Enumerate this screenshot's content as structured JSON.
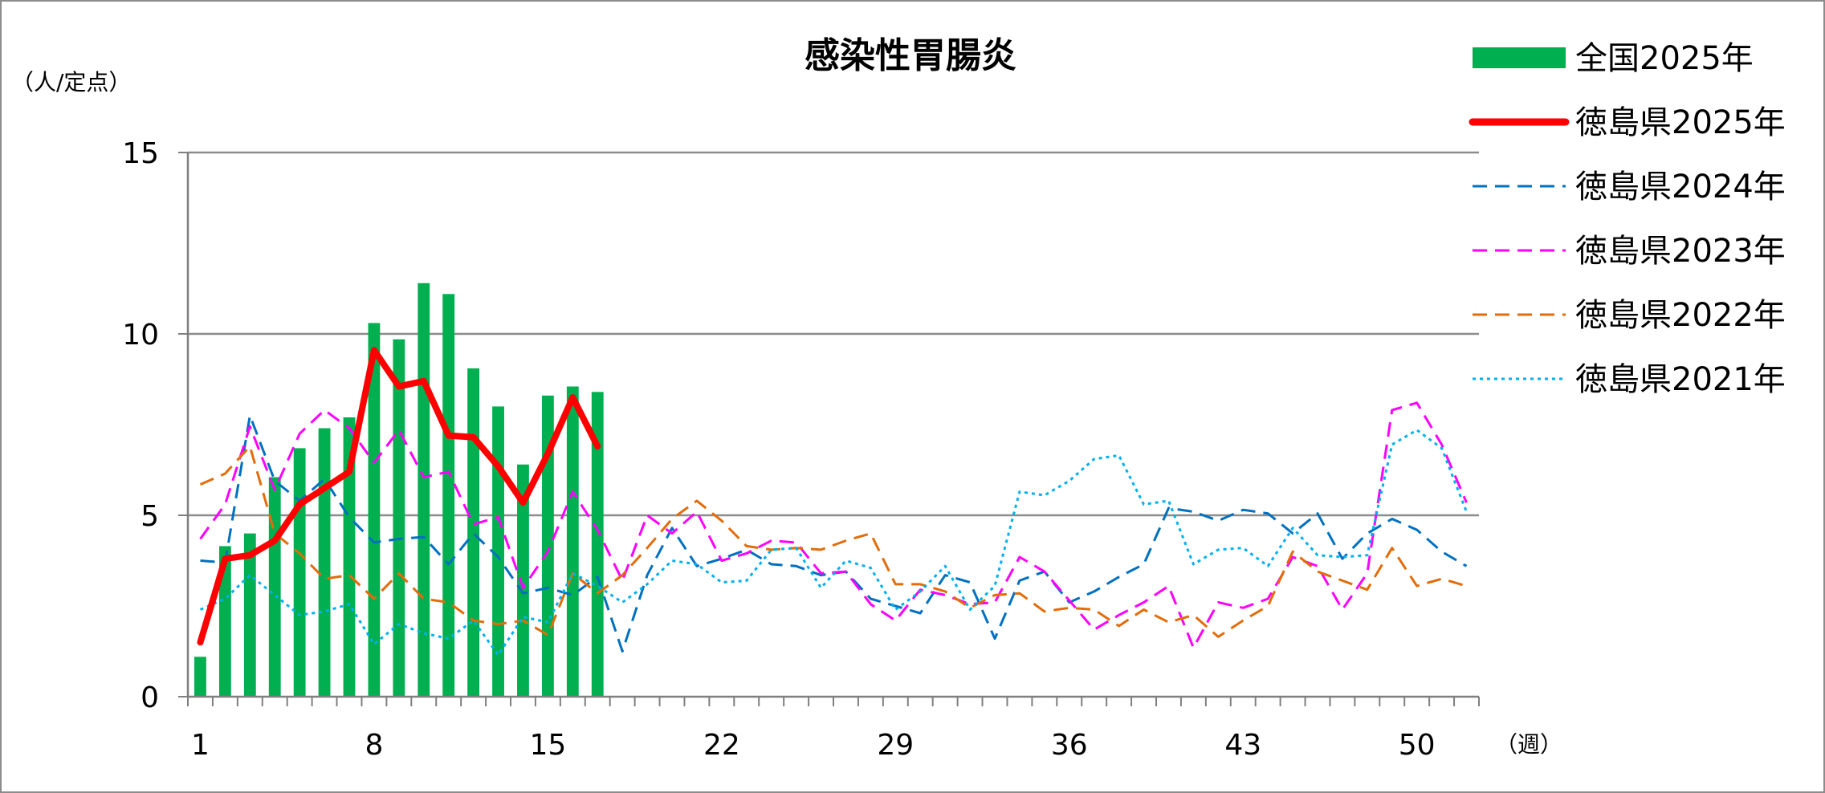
{
  "chart_data": {
    "type": "bar+line",
    "title": "感染性胃腸炎",
    "ylabel": "（人/定点）",
    "xlabel": "（週）",
    "ylim": [
      0,
      15
    ],
    "yticks": [
      0,
      5,
      10,
      15
    ],
    "xlim": [
      1,
      52
    ],
    "xtick_labels": [
      "1",
      "8",
      "15",
      "22",
      "29",
      "36",
      "43",
      "50"
    ],
    "xtick_values": [
      1,
      8,
      15,
      22,
      29,
      36,
      43,
      50
    ],
    "grid": "horizontal",
    "legend_position": "right",
    "series": [
      {
        "name": "全国2025年",
        "kind": "bar",
        "color": "#00b050",
        "x": [
          1,
          2,
          3,
          4,
          5,
          6,
          7,
          8,
          9,
          10,
          11,
          12,
          13,
          14,
          15,
          16,
          17
        ],
        "values": [
          1.1,
          4.15,
          4.5,
          6.05,
          6.85,
          7.4,
          7.7,
          10.3,
          9.85,
          11.4,
          11.1,
          9.05,
          8.0,
          6.4,
          8.3,
          8.55,
          8.4
        ]
      },
      {
        "name": "徳島県2025年",
        "kind": "line",
        "style": "solid",
        "color": "#ff0000",
        "x": [
          1,
          2,
          3,
          4,
          5,
          6,
          7,
          8,
          9,
          10,
          11,
          12,
          13,
          14,
          15,
          16,
          17
        ],
        "values": [
          1.5,
          3.8,
          3.9,
          4.3,
          5.3,
          5.75,
          6.2,
          9.55,
          8.55,
          8.7,
          7.2,
          7.15,
          6.35,
          5.35,
          6.7,
          8.25,
          6.9
        ]
      },
      {
        "name": "徳島県2024年",
        "kind": "line",
        "style": "dashed",
        "color": "#0070c0",
        "x": [
          1,
          2,
          3,
          4,
          5,
          6,
          7,
          8,
          9,
          10,
          11,
          12,
          13,
          14,
          15,
          16,
          17,
          18,
          19,
          20,
          21,
          22,
          23,
          24,
          25,
          26,
          27,
          28,
          29,
          30,
          31,
          32,
          33,
          34,
          35,
          36,
          37,
          38,
          39,
          40,
          41,
          42,
          43,
          44,
          45,
          46,
          47,
          48,
          49,
          50,
          51,
          52
        ],
        "values": [
          3.75,
          3.7,
          7.75,
          5.95,
          5.4,
          6.0,
          4.95,
          4.25,
          4.35,
          4.4,
          3.65,
          4.5,
          3.85,
          2.85,
          3.0,
          2.8,
          3.3,
          1.25,
          3.35,
          4.65,
          3.6,
          3.8,
          4.05,
          3.65,
          3.6,
          3.35,
          3.45,
          2.7,
          2.5,
          2.3,
          3.35,
          3.15,
          1.6,
          3.2,
          3.45,
          2.6,
          2.9,
          3.3,
          3.65,
          5.2,
          5.1,
          4.85,
          5.15,
          5.05,
          4.5,
          5.05,
          3.8,
          4.5,
          4.9,
          4.6,
          4.0,
          3.6
        ]
      },
      {
        "name": "徳島県2023年",
        "kind": "line",
        "style": "dashed",
        "color": "#ff00ff",
        "x": [
          1,
          2,
          3,
          4,
          5,
          6,
          7,
          8,
          9,
          10,
          11,
          12,
          13,
          14,
          15,
          16,
          17,
          18,
          19,
          20,
          21,
          22,
          23,
          24,
          25,
          26,
          27,
          28,
          29,
          30,
          31,
          32,
          33,
          34,
          35,
          36,
          37,
          38,
          39,
          40,
          41,
          42,
          43,
          44,
          45,
          46,
          47,
          48,
          49,
          50,
          51,
          52
        ],
        "values": [
          4.35,
          5.3,
          7.45,
          5.7,
          7.25,
          7.9,
          7.4,
          6.45,
          7.35,
          6.05,
          6.2,
          4.75,
          4.95,
          3.0,
          4.0,
          5.65,
          4.6,
          3.2,
          5.0,
          4.5,
          5.1,
          3.75,
          3.95,
          4.3,
          4.25,
          3.4,
          3.45,
          2.55,
          2.1,
          2.95,
          2.8,
          2.55,
          2.6,
          3.85,
          3.45,
          2.65,
          1.85,
          2.25,
          2.6,
          3.05,
          1.35,
          2.6,
          2.45,
          2.7,
          3.85,
          3.6,
          2.4,
          3.4,
          7.9,
          8.1,
          6.95,
          5.35
        ]
      },
      {
        "name": "徳島県2022年",
        "kind": "line",
        "style": "dashed",
        "color": "#e36c09",
        "x": [
          1,
          2,
          3,
          4,
          5,
          6,
          7,
          8,
          9,
          10,
          11,
          12,
          13,
          14,
          15,
          16,
          17,
          18,
          19,
          20,
          21,
          22,
          23,
          24,
          25,
          26,
          27,
          28,
          29,
          30,
          31,
          32,
          33,
          34,
          35,
          36,
          37,
          38,
          39,
          40,
          41,
          42,
          43,
          44,
          45,
          46,
          47,
          48,
          49,
          50,
          51,
          52
        ],
        "values": [
          5.85,
          6.15,
          6.9,
          4.5,
          3.95,
          3.25,
          3.35,
          2.7,
          3.4,
          2.7,
          2.6,
          2.1,
          2.0,
          2.1,
          1.7,
          3.4,
          2.85,
          3.35,
          4.1,
          4.9,
          5.4,
          4.85,
          4.15,
          4.05,
          4.1,
          4.05,
          4.3,
          4.5,
          3.1,
          3.1,
          2.9,
          2.45,
          2.8,
          2.85,
          2.35,
          2.45,
          2.4,
          1.95,
          2.4,
          2.05,
          2.25,
          1.65,
          2.1,
          2.5,
          4.0,
          3.45,
          3.2,
          2.95,
          4.1,
          3.05,
          3.25,
          3.05
        ]
      },
      {
        "name": "徳島県2021年",
        "kind": "line",
        "style": "dotted",
        "color": "#00b0f0",
        "x": [
          1,
          2,
          3,
          4,
          5,
          6,
          7,
          8,
          9,
          10,
          11,
          12,
          13,
          14,
          15,
          16,
          17,
          18,
          19,
          20,
          21,
          22,
          23,
          24,
          25,
          26,
          27,
          28,
          29,
          30,
          31,
          32,
          33,
          34,
          35,
          36,
          37,
          38,
          39,
          40,
          41,
          42,
          43,
          44,
          45,
          46,
          47,
          48,
          49,
          50,
          51,
          52
        ],
        "values": [
          2.4,
          2.7,
          3.35,
          2.8,
          2.25,
          2.35,
          2.55,
          1.45,
          2.0,
          1.75,
          1.6,
          2.1,
          1.15,
          2.2,
          2.05,
          3.4,
          3.05,
          2.6,
          3.1,
          3.75,
          3.65,
          3.15,
          3.2,
          4.05,
          4.1,
          3.0,
          3.75,
          3.55,
          2.4,
          2.9,
          3.6,
          2.4,
          3.05,
          5.65,
          5.55,
          5.95,
          6.55,
          6.65,
          5.3,
          5.4,
          3.65,
          4.05,
          4.1,
          3.6,
          4.65,
          3.9,
          3.85,
          3.9,
          6.95,
          7.35,
          6.85,
          5.1
        ]
      }
    ]
  }
}
